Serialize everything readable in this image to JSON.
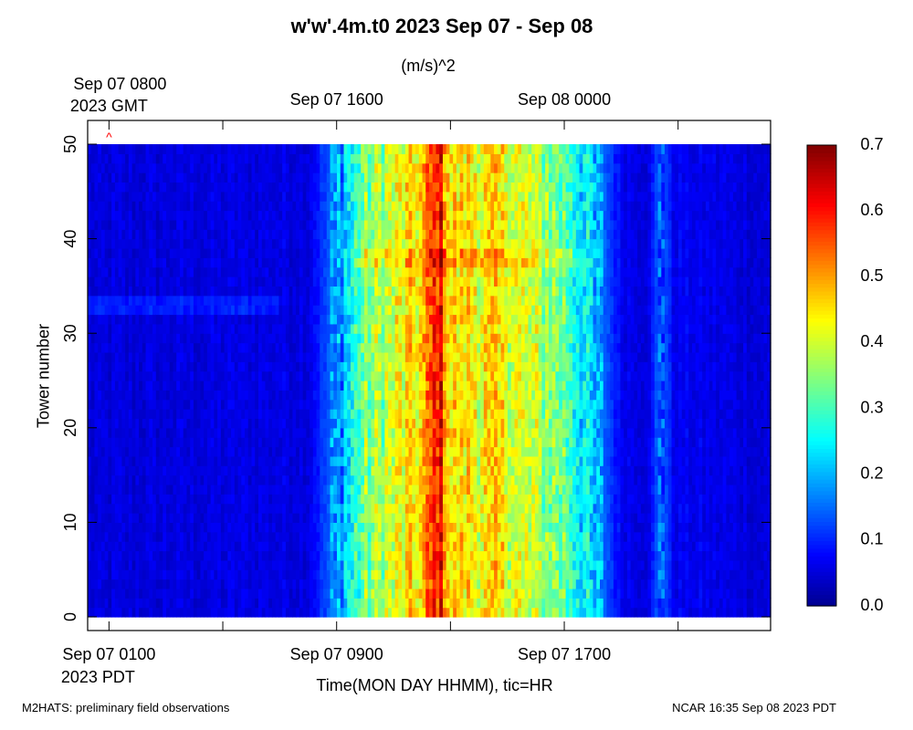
{
  "chart_data": {
    "type": "heatmap",
    "title": "w'w'.4m.t0 2023 Sep 07 - Sep 08",
    "units": "(m/s)^2",
    "ylabel": "Tower number",
    "xlabel": "Time(MON DAY HHMM), tic=HR",
    "ylim": [
      0,
      50
    ],
    "y_ticks": [
      "0",
      "10",
      "20",
      "30",
      "40",
      "50"
    ],
    "x_range_hours_pdt": [
      0.25,
      24.25
    ],
    "x_ticks_bottom_pdt": [
      {
        "line1": "Sep 07 0100",
        "line2": "2023 PDT"
      },
      {
        "line1": "Sep 07 0900",
        "line2": ""
      },
      {
        "line1": "Sep 07 1700",
        "line2": ""
      }
    ],
    "x_ticks_top_gmt": [
      {
        "line1": "Sep 07 0800",
        "line2": "2023 GMT"
      },
      {
        "line1": "Sep 07 1600",
        "line2": ""
      },
      {
        "line1": "Sep 08 0000",
        "line2": ""
      }
    ],
    "colorbar": {
      "min": 0.0,
      "max": 0.7,
      "ticks": [
        "0.0",
        "0.1",
        "0.2",
        "0.3",
        "0.4",
        "0.5",
        "0.6",
        "0.7"
      ],
      "colormap": [
        "#00008f",
        "#0000ff",
        "#00ffff",
        "#ffff00",
        "#ff0000",
        "#800000"
      ]
    },
    "time_profile_pdt": [
      {
        "hour": 0.25,
        "value": 0.05
      },
      {
        "hour": 8.0,
        "value": 0.06
      },
      {
        "hour": 8.6,
        "value": 0.12
      },
      {
        "hour": 9.3,
        "value": 0.22
      },
      {
        "hour": 10.0,
        "value": 0.34
      },
      {
        "hour": 11.0,
        "value": 0.4
      },
      {
        "hour": 12.0,
        "value": 0.46
      },
      {
        "hour": 12.6,
        "value": 0.62
      },
      {
        "hour": 13.0,
        "value": 0.45
      },
      {
        "hour": 15.0,
        "value": 0.43
      },
      {
        "hour": 16.0,
        "value": 0.38
      },
      {
        "hour": 17.0,
        "value": 0.33
      },
      {
        "hour": 18.0,
        "value": 0.2
      },
      {
        "hour": 19.0,
        "value": 0.07
      },
      {
        "hour": 20.0,
        "value": 0.06
      },
      {
        "hour": 20.4,
        "value": 0.17
      },
      {
        "hour": 20.8,
        "value": 0.07
      },
      {
        "hour": 24.25,
        "value": 0.05
      }
    ],
    "marker": {
      "symbol": "^",
      "hour": 0.25,
      "tower": 50,
      "color": "#ff0000"
    }
  },
  "footer": {
    "left": "M2HATS: preliminary field observations",
    "right": "NCAR 16:35 Sep 08 2023 PDT"
  }
}
